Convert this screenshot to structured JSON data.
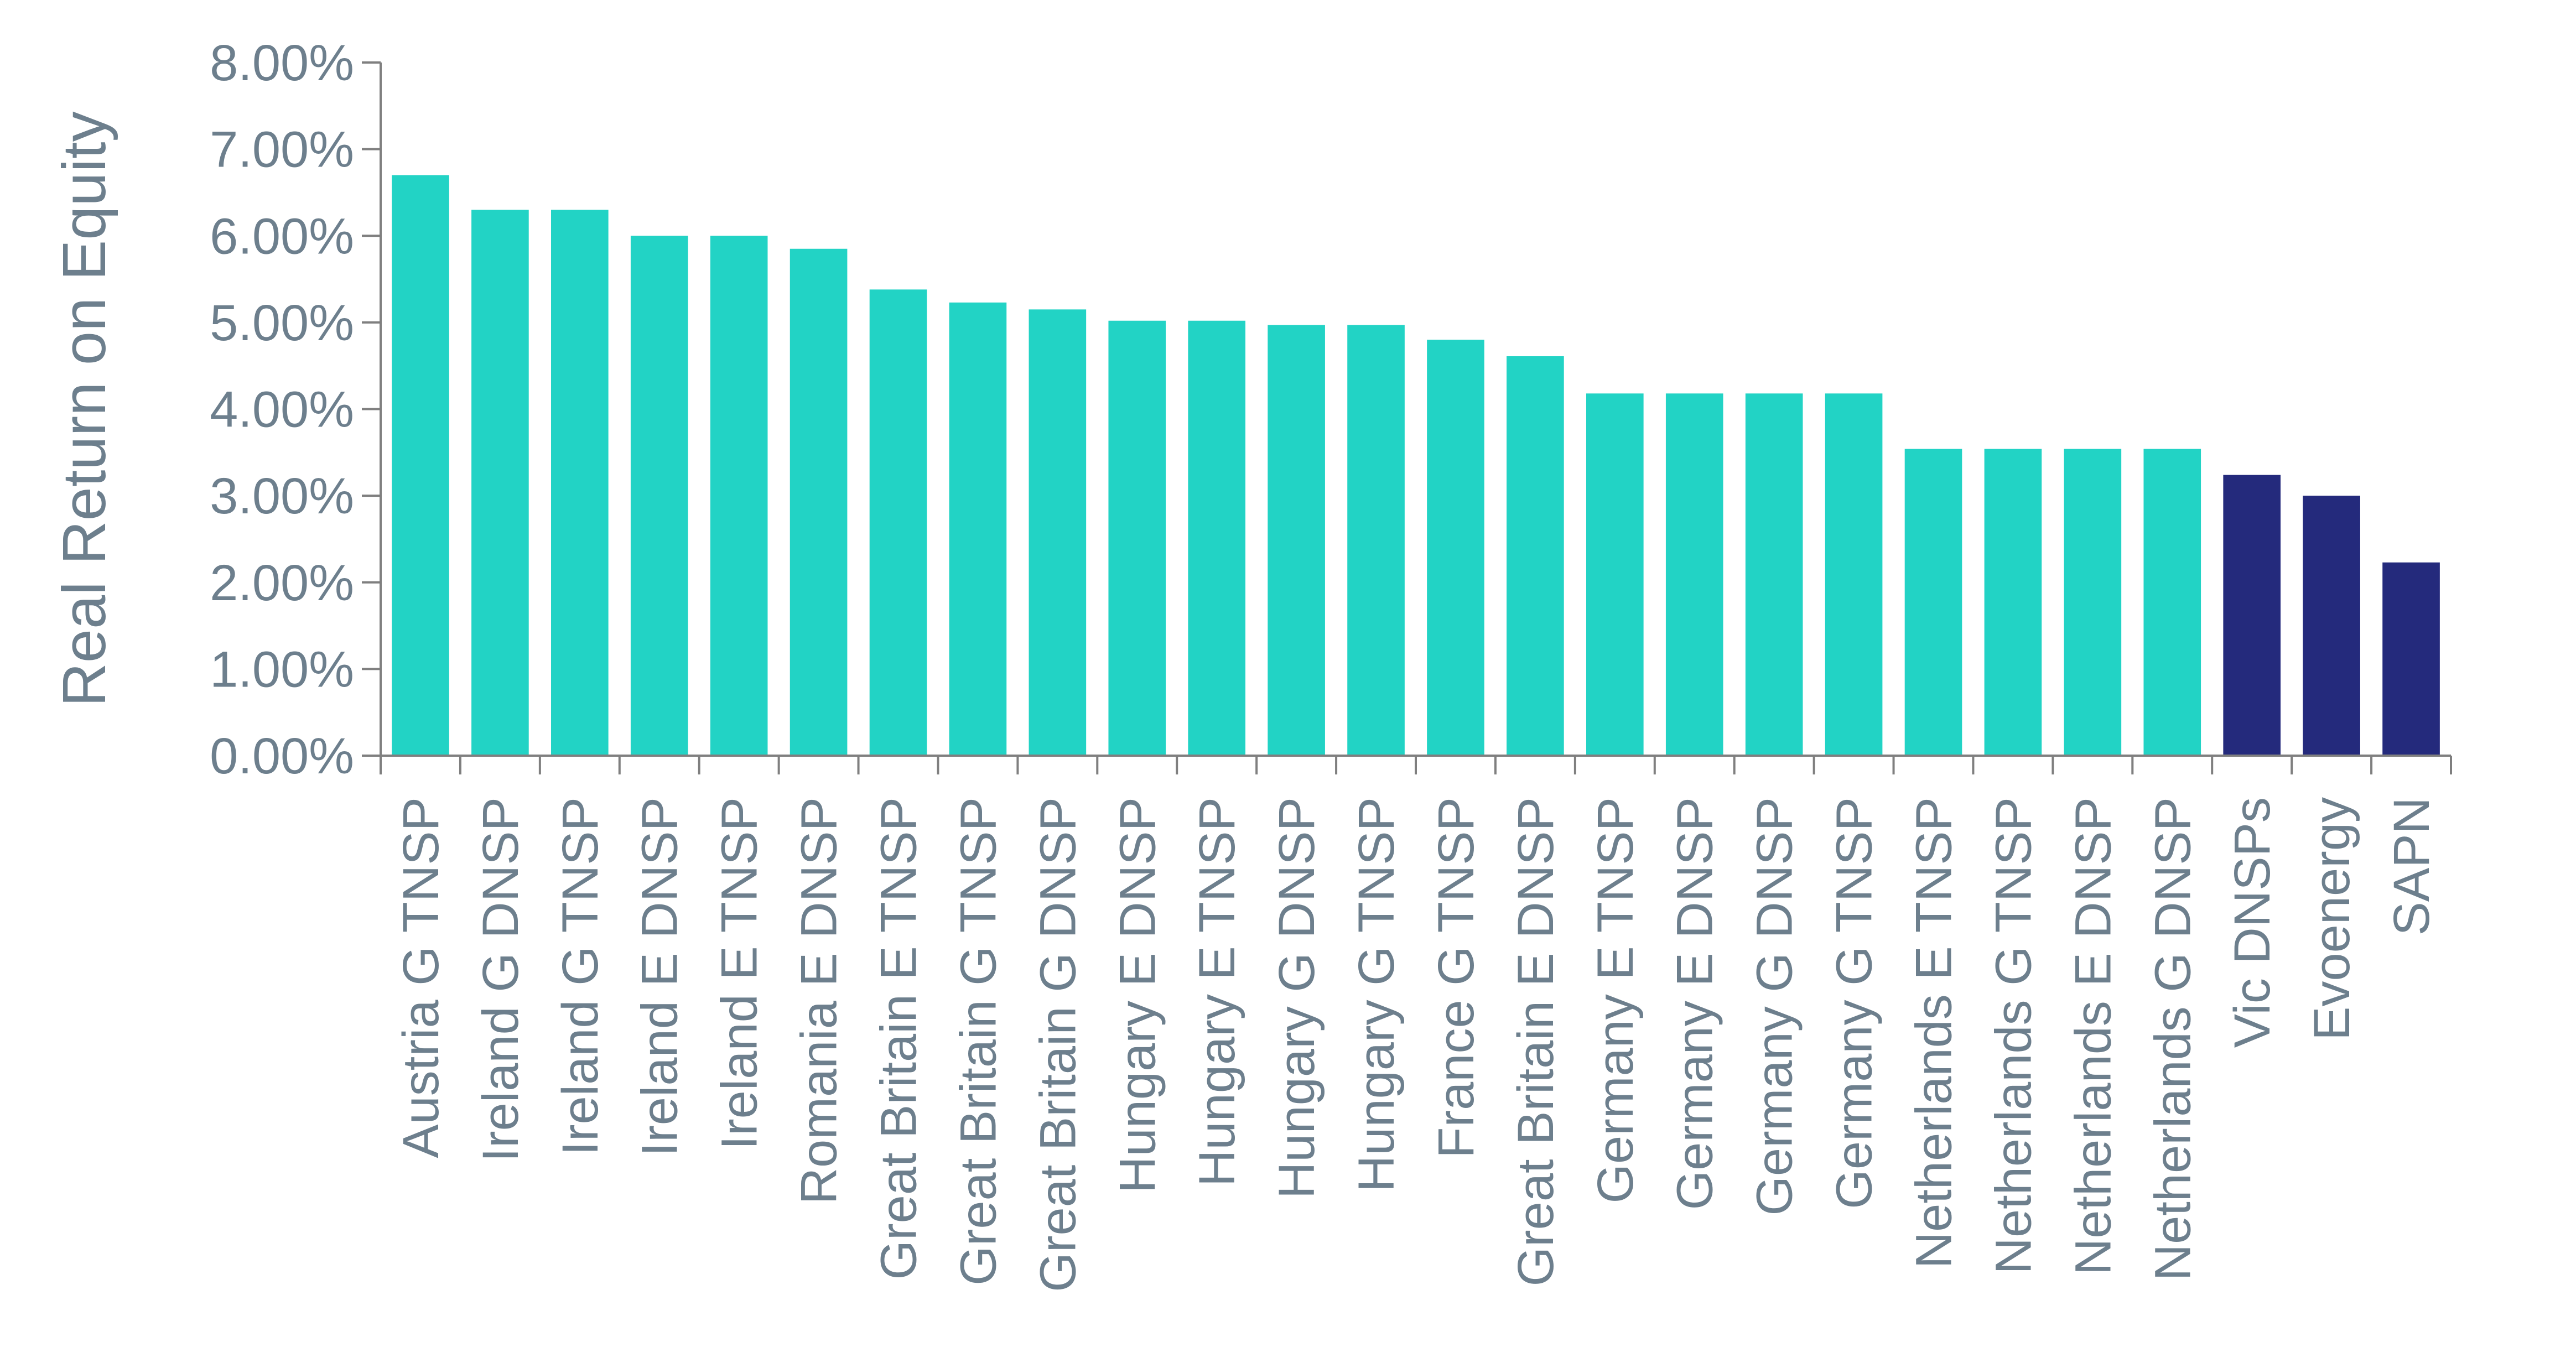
{
  "chart_data": {
    "type": "bar",
    "title": "",
    "xlabel": "",
    "ylabel": "Real Return on Equity",
    "ylim": [
      0,
      8
    ],
    "y_ticks": [
      "0.00%",
      "1.00%",
      "2.00%",
      "3.00%",
      "4.00%",
      "5.00%",
      "6.00%",
      "7.00%",
      "8.00%"
    ],
    "grid": false,
    "legend": "none",
    "colors": {
      "international": "#22d3c5",
      "australian": "#242a7c",
      "axis": "#7f7f7f",
      "text": "#6d7f8d"
    },
    "categories": [
      "Austria G TNSP",
      "Ireland G DNSP",
      "Ireland G TNSP",
      "Ireland E DNSP",
      "Ireland E TNSP",
      "Romania E DNSP",
      "Great Britain E TNSP",
      "Great Britain G TNSP",
      "Great Britain G DNSP",
      "Hungary E DNSP",
      "Hungary E TNSP",
      "Hungary G DNSP",
      "Hungary G TNSP",
      "France G TNSP",
      "Great Britain E DNSP",
      "Germany E TNSP",
      "Germany E DNSP",
      "Germany G DNSP",
      "Germany G TNSP",
      "Netherlands E TNSP",
      "Netherlands G TNSP",
      "Netherlands E DNSP",
      "Netherlands G DNSP",
      "Vic DNSPs",
      "Evoenergy",
      "SAPN"
    ],
    "values": [
      6.7,
      6.3,
      6.3,
      6.0,
      6.0,
      5.85,
      5.38,
      5.23,
      5.15,
      5.02,
      5.02,
      4.97,
      4.97,
      4.8,
      4.61,
      4.18,
      4.18,
      4.18,
      4.18,
      3.54,
      3.54,
      3.54,
      3.54,
      3.24,
      3.0,
      2.23
    ],
    "bar_groups": [
      "international",
      "international",
      "international",
      "international",
      "international",
      "international",
      "international",
      "international",
      "international",
      "international",
      "international",
      "international",
      "international",
      "international",
      "international",
      "international",
      "international",
      "international",
      "international",
      "international",
      "international",
      "international",
      "international",
      "australian",
      "australian",
      "australian"
    ]
  }
}
